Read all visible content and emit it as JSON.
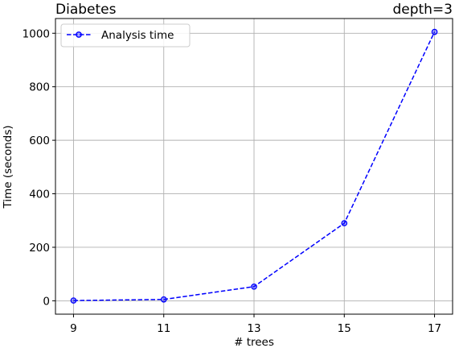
{
  "chart_data": {
    "type": "line",
    "title_left": "Diabetes",
    "title_right": "depth=3",
    "xlabel": "# trees",
    "ylabel": "Time (seconds)",
    "x": [
      9,
      11,
      13,
      15,
      17
    ],
    "xticks": [
      9,
      11,
      13,
      15,
      17
    ],
    "yticks": [
      0,
      200,
      400,
      600,
      800,
      1000
    ],
    "xlim": [
      8.6,
      17.4
    ],
    "ylim": [
      -50,
      1055
    ],
    "grid": true,
    "legend_position": "top-left",
    "series": [
      {
        "name": "Analysis time",
        "values": [
          1,
          5,
          53,
          290,
          1005
        ],
        "color": "#0000ff",
        "line_style": "dashed",
        "marker": "circle"
      }
    ]
  }
}
